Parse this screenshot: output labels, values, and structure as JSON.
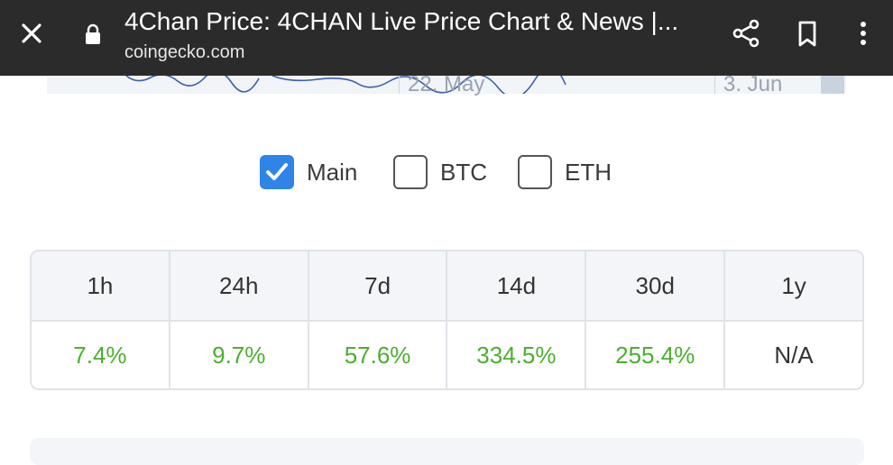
{
  "browser": {
    "title": "4Chan Price: 4CHAN Live Price Chart & News |...",
    "domain": "coingecko.com",
    "icons": [
      "close-icon",
      "lock-icon",
      "share-icon",
      "bookmark-icon",
      "more-vert-icon"
    ]
  },
  "chart_strip": {
    "ticks": [
      "22. May",
      "3. Jun"
    ],
    "line_color": "#3b5fa8"
  },
  "compare": {
    "options": [
      {
        "label": "Main",
        "checked": true
      },
      {
        "label": "BTC",
        "checked": false
      },
      {
        "label": "ETH",
        "checked": false
      }
    ],
    "checked_color": "#2f84e8"
  },
  "change_table": {
    "headers": [
      "1h",
      "24h",
      "7d",
      "14d",
      "30d",
      "1y"
    ],
    "values": [
      "7.4%",
      "9.7%",
      "57.6%",
      "334.5%",
      "255.4%",
      "N/A"
    ],
    "positive_color": "#4cae2f"
  }
}
